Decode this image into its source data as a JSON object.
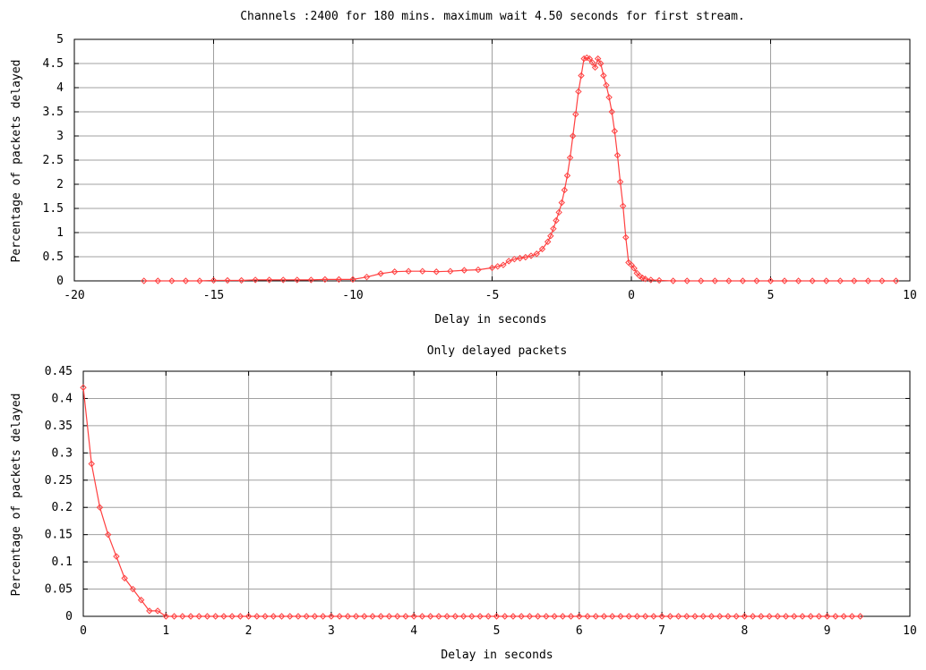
{
  "colors": {
    "series": "#ff4040",
    "grid": "#a0a0a0",
    "axis": "#000000"
  },
  "chart_data": [
    {
      "type": "line",
      "title": "Channels :2400 for 180 mins. maximum wait 4.50 seconds for first stream.",
      "xlabel": "Delay in seconds",
      "ylabel": "Percentage of packets delayed",
      "xlim": [
        -20,
        10
      ],
      "ylim": [
        0,
        5
      ],
      "xticks": [
        -20,
        -15,
        -10,
        -5,
        0,
        5,
        10
      ],
      "yticks": [
        0,
        0.5,
        1,
        1.5,
        2,
        2.5,
        3,
        3.5,
        4,
        4.5,
        5
      ],
      "xtick_labels": [
        "-20",
        "-15",
        "-10",
        "-5",
        "0",
        "5",
        "10"
      ],
      "ytick_labels": [
        "0",
        "0.5",
        "1",
        "1.5",
        "2",
        "2.5",
        "3",
        "3.5",
        "4",
        "4.5",
        "5"
      ],
      "grid": true,
      "series": [
        {
          "x": [
            -17.5,
            -17,
            -16.5,
            -16,
            -15.5,
            -15,
            -14.5,
            -14,
            -13.5,
            -13,
            -12.5,
            -12,
            -11.5,
            -11,
            -10.5,
            -10,
            -9.5,
            -9,
            -8.5,
            -8,
            -7.5,
            -7,
            -6.5,
            -6,
            -5.5,
            -5,
            -4.8,
            -4.6,
            -4.4,
            -4.2,
            -4,
            -3.8,
            -3.6,
            -3.4,
            -3.2,
            -3,
            -2.9,
            -2.8,
            -2.7,
            -2.6,
            -2.5,
            -2.4,
            -2.3,
            -2.2,
            -2.1,
            -2,
            -1.9,
            -1.8,
            -1.7,
            -1.6,
            -1.5,
            -1.4,
            -1.3,
            -1.2,
            -1.1,
            -1,
            -0.9,
            -0.8,
            -0.7,
            -0.6,
            -0.5,
            -0.4,
            -0.3,
            -0.2,
            -0.1,
            0,
            0.1,
            0.2,
            0.3,
            0.4,
            0.5,
            0.7,
            1,
            1.5,
            2,
            2.5,
            3,
            3.5,
            4,
            4.5,
            5,
            5.5,
            6,
            6.5,
            7,
            7.5,
            8,
            8.5,
            9,
            9.5
          ],
          "values": [
            0,
            0,
            0,
            0,
            0,
            0.01,
            0.01,
            0.01,
            0.02,
            0.02,
            0.02,
            0.02,
            0.02,
            0.03,
            0.03,
            0.03,
            0.08,
            0.15,
            0.19,
            0.2,
            0.2,
            0.19,
            0.2,
            0.22,
            0.23,
            0.27,
            0.3,
            0.33,
            0.41,
            0.45,
            0.47,
            0.49,
            0.52,
            0.56,
            0.66,
            0.81,
            0.93,
            1.08,
            1.25,
            1.42,
            1.62,
            1.88,
            2.18,
            2.55,
            3,
            3.45,
            3.92,
            4.25,
            4.6,
            4.62,
            4.6,
            4.52,
            4.42,
            4.6,
            4.5,
            4.25,
            4.05,
            3.8,
            3.5,
            3.1,
            2.6,
            2.05,
            1.55,
            0.9,
            0.38,
            0.33,
            0.26,
            0.16,
            0.1,
            0.06,
            0.04,
            0.02,
            0.01,
            0,
            0,
            0,
            0,
            0,
            0,
            0,
            0,
            0,
            0,
            0,
            0,
            0,
            0,
            0,
            0,
            0
          ]
        }
      ]
    },
    {
      "type": "line",
      "title": "Only delayed packets",
      "xlabel": "Delay in seconds",
      "ylabel": "Percentage of packets delayed",
      "xlim": [
        0,
        10
      ],
      "ylim": [
        0,
        0.45
      ],
      "xticks": [
        0,
        1,
        2,
        3,
        4,
        5,
        6,
        7,
        8,
        9,
        10
      ],
      "yticks": [
        0,
        0.05,
        0.1,
        0.15,
        0.2,
        0.25,
        0.3,
        0.35,
        0.4,
        0.45
      ],
      "xtick_labels": [
        "0",
        "1",
        "2",
        "3",
        "4",
        "5",
        "6",
        "7",
        "8",
        "9",
        "10"
      ],
      "ytick_labels": [
        "0",
        "0.05",
        "0.1",
        "0.15",
        "0.2",
        "0.25",
        "0.3",
        "0.35",
        "0.4",
        "0.45"
      ],
      "grid": true,
      "series": [
        {
          "x": [
            0,
            0.1,
            0.2,
            0.3,
            0.4,
            0.5,
            0.6,
            0.7,
            0.8,
            0.9,
            1,
            1.1,
            1.2,
            1.3,
            1.4,
            1.5,
            1.6,
            1.7,
            1.8,
            1.9,
            2,
            2.1,
            2.2,
            2.3,
            2.4,
            2.5,
            2.6,
            2.7,
            2.8,
            2.9,
            3,
            3.1,
            3.2,
            3.3,
            3.4,
            3.5,
            3.6,
            3.7,
            3.8,
            3.9,
            4,
            4.1,
            4.2,
            4.3,
            4.4,
            4.5,
            4.6,
            4.7,
            4.8,
            4.9,
            5,
            5.1,
            5.2,
            5.3,
            5.4,
            5.5,
            5.6,
            5.7,
            5.8,
            5.9,
            6,
            6.1,
            6.2,
            6.3,
            6.4,
            6.5,
            6.6,
            6.7,
            6.8,
            6.9,
            7,
            7.1,
            7.2,
            7.3,
            7.4,
            7.5,
            7.6,
            7.7,
            7.8,
            7.9,
            8,
            8.1,
            8.2,
            8.3,
            8.4,
            8.5,
            8.6,
            8.7,
            8.8,
            8.9,
            9,
            9.1,
            9.2,
            9.3,
            9.4
          ],
          "values": [
            0.42,
            0.28,
            0.2,
            0.15,
            0.11,
            0.07,
            0.05,
            0.03,
            0.01,
            0.01,
            0,
            0,
            0,
            0,
            0,
            0,
            0,
            0,
            0,
            0,
            0,
            0,
            0,
            0,
            0,
            0,
            0,
            0,
            0,
            0,
            0,
            0,
            0,
            0,
            0,
            0,
            0,
            0,
            0,
            0,
            0,
            0,
            0,
            0,
            0,
            0,
            0,
            0,
            0,
            0,
            0,
            0,
            0,
            0,
            0,
            0,
            0,
            0,
            0,
            0,
            0,
            0,
            0,
            0,
            0,
            0,
            0,
            0,
            0,
            0,
            0,
            0,
            0,
            0,
            0,
            0,
            0,
            0,
            0,
            0,
            0,
            0,
            0,
            0,
            0,
            0,
            0,
            0,
            0,
            0,
            0,
            0,
            0,
            0,
            0
          ]
        }
      ]
    }
  ]
}
